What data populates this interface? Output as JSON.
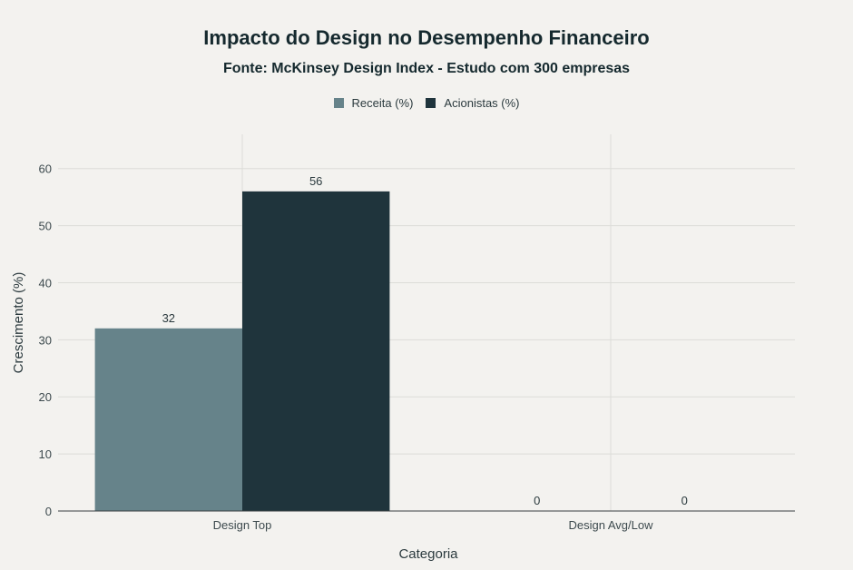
{
  "chart_data": {
    "type": "bar",
    "title": "Impacto do Design no Desempenho Financeiro",
    "subtitle": "Fonte: McKinsey Design Index - Estudo com 300 empresas",
    "xlabel": "Categoria",
    "ylabel": "Crescimento (%)",
    "categories": [
      "Design Top",
      "Design Avg/Low"
    ],
    "series": [
      {
        "name": "Receita (%)",
        "values": [
          32,
          0
        ],
        "color": "#66838a"
      },
      {
        "name": "Acionistas (%)",
        "values": [
          56,
          0
        ],
        "color": "#1f343c"
      }
    ],
    "ylim": [
      0,
      66
    ],
    "yticks": [
      0,
      10,
      20,
      30,
      40,
      50,
      60
    ],
    "grid": true,
    "legend_position": "top-center"
  }
}
